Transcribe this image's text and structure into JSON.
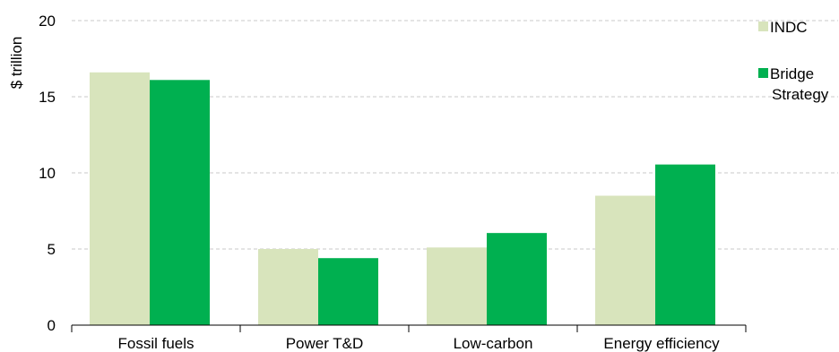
{
  "chart_data": {
    "type": "bar",
    "categories": [
      "Fossil fuels",
      "Power T&D",
      "Low-carbon",
      "Energy efficiency"
    ],
    "series": [
      {
        "name": "INDC",
        "values": [
          16.6,
          5.0,
          5.1,
          8.5
        ]
      },
      {
        "name": "Bridge Strategy",
        "values": [
          16.1,
          4.4,
          6.05,
          10.55
        ]
      }
    ],
    "colors": [
      "#d8e4bc",
      "#00b050"
    ],
    "ylabel": "$ trillion",
    "xlabel": "",
    "ylim": [
      0,
      20
    ],
    "yticks": [
      0,
      5,
      10,
      15,
      20
    ],
    "grid": true,
    "legend_position": "right",
    "legend_lines": [
      [
        "INDC"
      ],
      [
        "Bridge",
        "Strategy"
      ]
    ]
  }
}
